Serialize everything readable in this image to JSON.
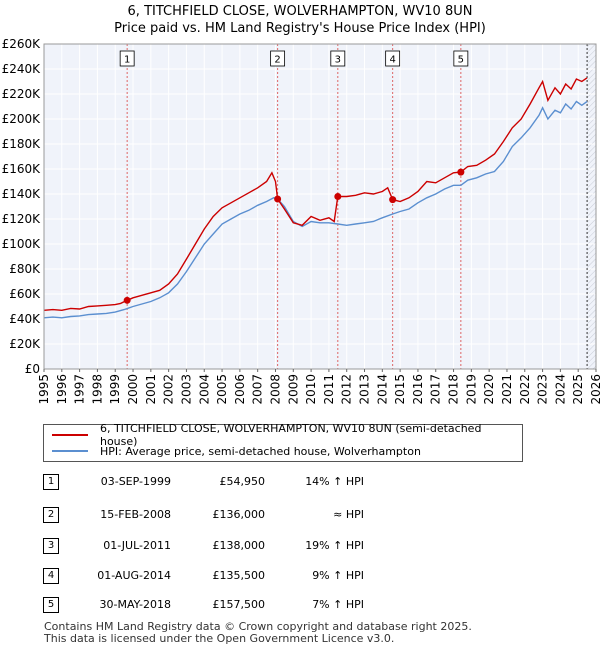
{
  "header": {
    "title_line1": "6, TITCHFIELD CLOSE, WOLVERHAMPTON, WV10 8UN",
    "title_line2": "Price paid vs. HM Land Registry's House Price Index (HPI)"
  },
  "legend": {
    "items": [
      {
        "label": "6, TITCHFIELD CLOSE, WOLVERHAMPTON, WV10 8UN (semi-detached house)",
        "color": "#cc0000"
      },
      {
        "label": "HPI: Average price, semi-detached house, Wolverhampton",
        "color": "#5b8fd0"
      }
    ]
  },
  "transactions": [
    {
      "num": "1",
      "date": "03-SEP-1999",
      "price": "£54,950",
      "hpi": "14% ↑ HPI"
    },
    {
      "num": "2",
      "date": "15-FEB-2008",
      "price": "£136,000",
      "hpi": "≈ HPI"
    },
    {
      "num": "3",
      "date": "01-JUL-2011",
      "price": "£138,000",
      "hpi": "19% ↑ HPI"
    },
    {
      "num": "4",
      "date": "01-AUG-2014",
      "price": "£135,500",
      "hpi": "9% ↑ HPI"
    },
    {
      "num": "5",
      "date": "30-MAY-2018",
      "price": "£157,500",
      "hpi": "7% ↑ HPI"
    }
  ],
  "footer": {
    "line1": "Contains HM Land Registry data © Crown copyright and database right 2025.",
    "line2": "This data is licensed under the Open Government Licence v3.0."
  },
  "chart_data": {
    "type": "line",
    "title": "Price paid vs. HM Land Registry's House Price Index (HPI)",
    "xlabel": "",
    "ylabel": "",
    "xlim": [
      1995,
      2026
    ],
    "ylim": [
      0,
      260000
    ],
    "grid": true,
    "x_ticks": [
      "1995",
      "1996",
      "1997",
      "1998",
      "1999",
      "2000",
      "2001",
      "2002",
      "2003",
      "2004",
      "2005",
      "2006",
      "2007",
      "2008",
      "2009",
      "2010",
      "2011",
      "2012",
      "2013",
      "2014",
      "2015",
      "2016",
      "2017",
      "2018",
      "2019",
      "2020",
      "2021",
      "2022",
      "2023",
      "2024",
      "2025",
      "2026"
    ],
    "y_ticks": [
      {
        "value": 0,
        "label": "£0"
      },
      {
        "value": 20000,
        "label": "£20K"
      },
      {
        "value": 40000,
        "label": "£40K"
      },
      {
        "value": 60000,
        "label": "£60K"
      },
      {
        "value": 80000,
        "label": "£80K"
      },
      {
        "value": 100000,
        "label": "£100K"
      },
      {
        "value": 120000,
        "label": "£120K"
      },
      {
        "value": 140000,
        "label": "£140K"
      },
      {
        "value": 160000,
        "label": "£160K"
      },
      {
        "value": 180000,
        "label": "£180K"
      },
      {
        "value": 200000,
        "label": "£200K"
      },
      {
        "value": 220000,
        "label": "£220K"
      },
      {
        "value": 240000,
        "label": "£240K"
      },
      {
        "value": 260000,
        "label": "£260K"
      }
    ],
    "series": [
      {
        "name": "6, TITCHFIELD CLOSE, WOLVERHAMPTON, WV10 8UN (semi-detached house)",
        "color": "#cc0000",
        "points": [
          [
            1995.0,
            47000
          ],
          [
            1995.5,
            47500
          ],
          [
            1996.0,
            47000
          ],
          [
            1996.5,
            48500
          ],
          [
            1997.0,
            48000
          ],
          [
            1997.5,
            50000
          ],
          [
            1998.0,
            50500
          ],
          [
            1998.5,
            51000
          ],
          [
            1999.0,
            51500
          ],
          [
            1999.3,
            52500
          ],
          [
            1999.67,
            54950
          ],
          [
            2000.0,
            57000
          ],
          [
            2000.5,
            59000
          ],
          [
            2001.0,
            61000
          ],
          [
            2001.5,
            63000
          ],
          [
            2002.0,
            68000
          ],
          [
            2002.5,
            76000
          ],
          [
            2003.0,
            88000
          ],
          [
            2003.5,
            100000
          ],
          [
            2004.0,
            112000
          ],
          [
            2004.5,
            122000
          ],
          [
            2005.0,
            129000
          ],
          [
            2005.5,
            133000
          ],
          [
            2006.0,
            137000
          ],
          [
            2006.5,
            141000
          ],
          [
            2007.0,
            145000
          ],
          [
            2007.5,
            150000
          ],
          [
            2007.8,
            157000
          ],
          [
            2008.0,
            150000
          ],
          [
            2008.12,
            136000
          ],
          [
            2008.5,
            128000
          ],
          [
            2009.0,
            117000
          ],
          [
            2009.5,
            115000
          ],
          [
            2010.0,
            122000
          ],
          [
            2010.5,
            119000
          ],
          [
            2011.0,
            121000
          ],
          [
            2011.3,
            118000
          ],
          [
            2011.5,
            138000
          ],
          [
            2012.0,
            138000
          ],
          [
            2012.5,
            139000
          ],
          [
            2013.0,
            141000
          ],
          [
            2013.5,
            140000
          ],
          [
            2014.0,
            142000
          ],
          [
            2014.3,
            145000
          ],
          [
            2014.58,
            135500
          ],
          [
            2015.0,
            134000
          ],
          [
            2015.5,
            137000
          ],
          [
            2016.0,
            142000
          ],
          [
            2016.5,
            150000
          ],
          [
            2017.0,
            149000
          ],
          [
            2017.5,
            153000
          ],
          [
            2018.0,
            157000
          ],
          [
            2018.41,
            157500
          ],
          [
            2018.8,
            162000
          ],
          [
            2019.3,
            163000
          ],
          [
            2019.8,
            167000
          ],
          [
            2020.3,
            172000
          ],
          [
            2020.8,
            182000
          ],
          [
            2021.3,
            193000
          ],
          [
            2021.8,
            200000
          ],
          [
            2022.3,
            212000
          ],
          [
            2022.8,
            225000
          ],
          [
            2023.0,
            230000
          ],
          [
            2023.3,
            215000
          ],
          [
            2023.7,
            225000
          ],
          [
            2024.0,
            220000
          ],
          [
            2024.3,
            228000
          ],
          [
            2024.6,
            224000
          ],
          [
            2024.9,
            232000
          ],
          [
            2025.2,
            230000
          ],
          [
            2025.5,
            233000
          ]
        ]
      },
      {
        "name": "HPI: Average price, semi-detached house, Wolverhampton",
        "color": "#5b8fd0",
        "points": [
          [
            1995.0,
            41000
          ],
          [
            1995.5,
            41500
          ],
          [
            1996.0,
            41000
          ],
          [
            1996.5,
            42000
          ],
          [
            1997.0,
            42500
          ],
          [
            1997.5,
            43500
          ],
          [
            1998.0,
            44000
          ],
          [
            1998.5,
            44500
          ],
          [
            1999.0,
            45500
          ],
          [
            1999.5,
            47500
          ],
          [
            2000.0,
            50000
          ],
          [
            2000.5,
            52000
          ],
          [
            2001.0,
            54000
          ],
          [
            2001.5,
            57000
          ],
          [
            2002.0,
            61000
          ],
          [
            2002.5,
            68000
          ],
          [
            2003.0,
            78000
          ],
          [
            2003.5,
            89000
          ],
          [
            2004.0,
            100000
          ],
          [
            2004.5,
            108000
          ],
          [
            2005.0,
            116000
          ],
          [
            2005.5,
            120000
          ],
          [
            2006.0,
            124000
          ],
          [
            2006.5,
            127000
          ],
          [
            2007.0,
            131000
          ],
          [
            2007.5,
            134000
          ],
          [
            2007.9,
            137000
          ],
          [
            2008.12,
            136000
          ],
          [
            2008.5,
            130000
          ],
          [
            2009.0,
            118000
          ],
          [
            2009.5,
            114000
          ],
          [
            2010.0,
            118000
          ],
          [
            2010.5,
            117000
          ],
          [
            2011.0,
            117000
          ],
          [
            2011.5,
            116000
          ],
          [
            2012.0,
            115000
          ],
          [
            2012.5,
            116000
          ],
          [
            2013.0,
            117000
          ],
          [
            2013.5,
            118000
          ],
          [
            2014.0,
            121000
          ],
          [
            2014.58,
            124000
          ],
          [
            2015.0,
            126000
          ],
          [
            2015.5,
            128000
          ],
          [
            2016.0,
            133000
          ],
          [
            2016.5,
            137000
          ],
          [
            2017.0,
            140000
          ],
          [
            2017.5,
            144000
          ],
          [
            2018.0,
            147000
          ],
          [
            2018.41,
            147000
          ],
          [
            2018.8,
            151000
          ],
          [
            2019.3,
            153000
          ],
          [
            2019.8,
            156000
          ],
          [
            2020.3,
            158000
          ],
          [
            2020.8,
            166000
          ],
          [
            2021.3,
            178000
          ],
          [
            2021.8,
            185000
          ],
          [
            2022.3,
            193000
          ],
          [
            2022.8,
            203000
          ],
          [
            2023.0,
            209000
          ],
          [
            2023.3,
            200000
          ],
          [
            2023.7,
            207000
          ],
          [
            2024.0,
            205000
          ],
          [
            2024.3,
            212000
          ],
          [
            2024.6,
            208000
          ],
          [
            2024.9,
            214000
          ],
          [
            2025.2,
            211000
          ],
          [
            2025.5,
            214000
          ]
        ]
      }
    ],
    "sales": [
      {
        "label": "1",
        "x": 1999.67,
        "y": 54950,
        "label_y": 248000
      },
      {
        "label": "2",
        "x": 2008.12,
        "y": 136000,
        "label_y": 248000
      },
      {
        "label": "3",
        "x": 2011.5,
        "y": 138000,
        "label_y": 248000
      },
      {
        "label": "4",
        "x": 2014.58,
        "y": 135500,
        "label_y": 248000
      },
      {
        "label": "5",
        "x": 2018.41,
        "y": 157500,
        "label_y": 248000
      }
    ],
    "forecast_from": 2025.5
  }
}
